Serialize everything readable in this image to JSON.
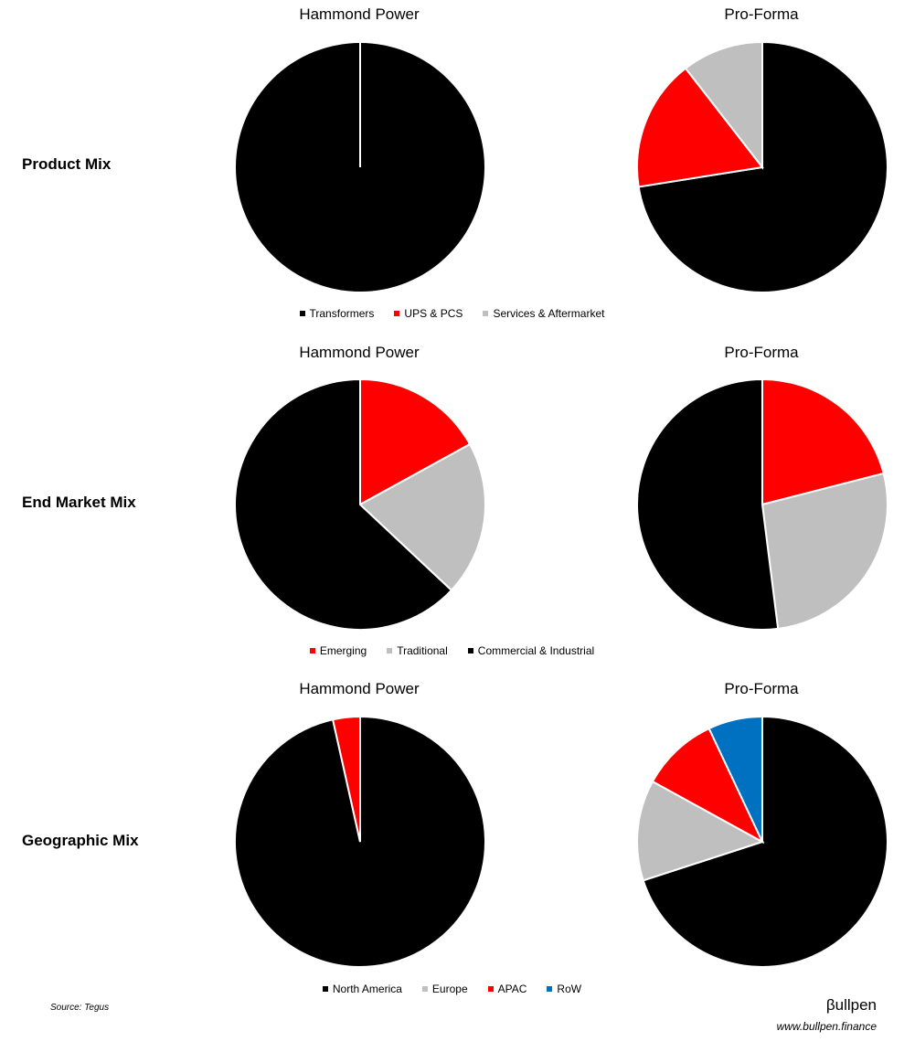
{
  "rows": [
    {
      "label": "Product Mix",
      "legend": [
        {
          "name": "Transformers",
          "color": "#000000"
        },
        {
          "name": "UPS & PCS",
          "color": "#ff0000"
        },
        {
          "name": "Services & Aftermarket",
          "color": "#bfbfbf"
        }
      ]
    },
    {
      "label": "End Market Mix",
      "legend": [
        {
          "name": "Emerging",
          "color": "#ff0000"
        },
        {
          "name": "Traditional",
          "color": "#bfbfbf"
        },
        {
          "name": "Commercial & Industrial",
          "color": "#000000"
        }
      ]
    },
    {
      "label": "Geographic Mix",
      "legend": [
        {
          "name": "North America",
          "color": "#000000"
        },
        {
          "name": "Europe",
          "color": "#bfbfbf"
        },
        {
          "name": "APAC",
          "color": "#ff0000"
        },
        {
          "name": "RoW",
          "color": "#0070c0"
        }
      ]
    }
  ],
  "chart_data": [
    {
      "type": "pie",
      "title": "Hammond Power",
      "row": "Product Mix",
      "slices": [
        {
          "label": "Transformers",
          "value": 100,
          "color": "#000000"
        },
        {
          "label": "UPS & PCS",
          "value": 0,
          "color": "#ff0000"
        },
        {
          "label": "Services & Aftermarket",
          "value": 0,
          "color": "#bfbfbf"
        }
      ]
    },
    {
      "type": "pie",
      "title": "Pro-Forma",
      "row": "Product Mix",
      "slices": [
        {
          "label": "Transformers",
          "value": 72.5,
          "color": "#000000"
        },
        {
          "label": "UPS & PCS",
          "value": 17,
          "color": "#ff0000"
        },
        {
          "label": "Services & Aftermarket",
          "value": 10.5,
          "color": "#bfbfbf"
        }
      ]
    },
    {
      "type": "pie",
      "title": "Hammond Power",
      "row": "End Market Mix",
      "slices": [
        {
          "label": "Emerging",
          "value": 17,
          "color": "#ff0000"
        },
        {
          "label": "Traditional",
          "value": 20,
          "color": "#bfbfbf"
        },
        {
          "label": "Commercial & Industrial",
          "value": 63,
          "color": "#000000"
        }
      ]
    },
    {
      "type": "pie",
      "title": "Pro-Forma",
      "row": "End Market Mix",
      "slices": [
        {
          "label": "Emerging",
          "value": 21,
          "color": "#ff0000"
        },
        {
          "label": "Traditional",
          "value": 27,
          "color": "#bfbfbf"
        },
        {
          "label": "Commercial & Industrial",
          "value": 52,
          "color": "#000000"
        }
      ]
    },
    {
      "type": "pie",
      "title": "Hammond Power",
      "row": "Geographic Mix",
      "slices": [
        {
          "label": "North America",
          "value": 96.5,
          "color": "#000000"
        },
        {
          "label": "Europe",
          "value": 0,
          "color": "#bfbfbf"
        },
        {
          "label": "APAC",
          "value": 3.5,
          "color": "#ff0000"
        },
        {
          "label": "RoW",
          "value": 0,
          "color": "#0070c0"
        }
      ]
    },
    {
      "type": "pie",
      "title": "Pro-Forma",
      "row": "Geographic Mix",
      "slices": [
        {
          "label": "North America",
          "value": 70,
          "color": "#000000"
        },
        {
          "label": "Europe",
          "value": 13,
          "color": "#bfbfbf"
        },
        {
          "label": "APAC",
          "value": 10,
          "color": "#ff0000"
        },
        {
          "label": "RoW",
          "value": 7,
          "color": "#0070c0"
        }
      ]
    }
  ],
  "footer": {
    "source": "Source: Tegus",
    "logo": "βullpen",
    "website": "www.bullpen.finance"
  }
}
